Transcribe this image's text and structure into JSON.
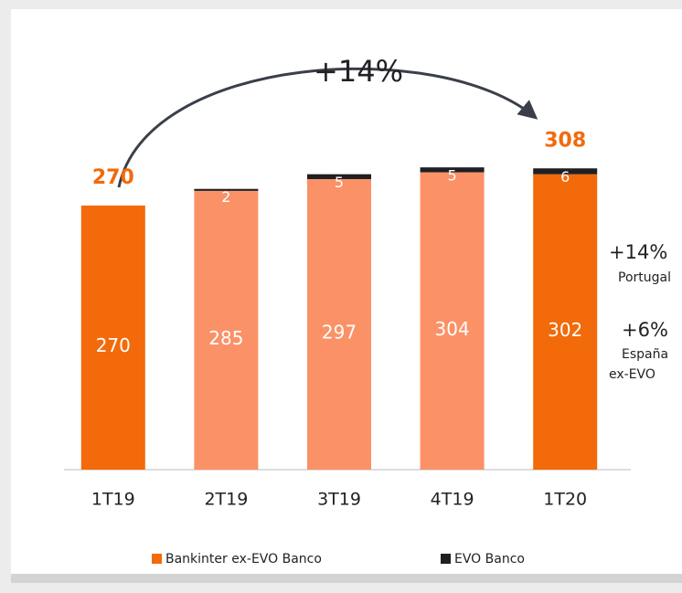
{
  "chart_data": {
    "type": "stacked_bar",
    "categories": [
      "1T19",
      "2T19",
      "3T19",
      "4T19",
      "1T20"
    ],
    "series": [
      {
        "name": "Bankinter ex-EVO Banco",
        "color": "#f26a0a",
        "colors": [
          "#f26a0a",
          "#fb9166",
          "#fb9166",
          "#fb9166",
          "#f26a0a"
        ],
        "values": [
          270,
          285,
          297,
          304,
          302
        ]
      },
      {
        "name": "EVO Banco",
        "color": "#1f1f24",
        "values": [
          null,
          2,
          5,
          5,
          6
        ]
      }
    ],
    "totals": [
      {
        "category": "1T19",
        "value": 270
      },
      {
        "category": "1T20",
        "value": 308
      }
    ],
    "arrow_label": "+14%",
    "side_notes": [
      {
        "value": "+14%",
        "label": "Portugal"
      },
      {
        "value": "+6%",
        "label": "España ex-EVO"
      }
    ],
    "ylim": [
      0,
      340
    ],
    "legend": "bottom"
  }
}
